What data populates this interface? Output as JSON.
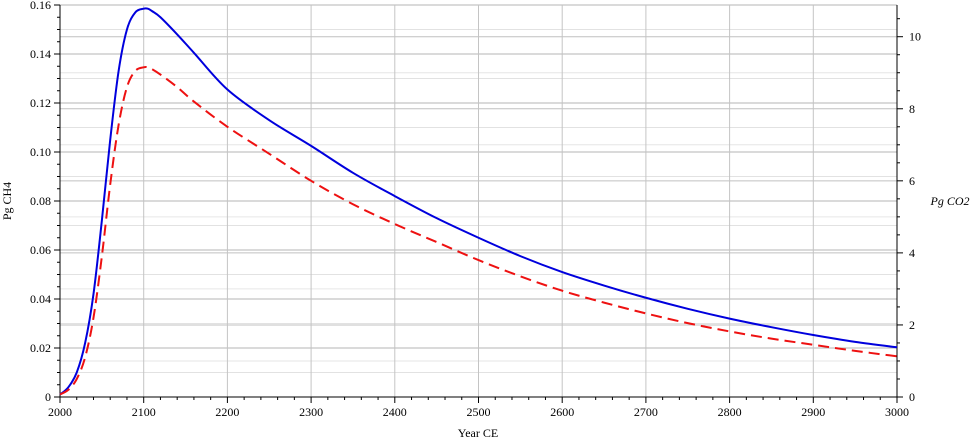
{
  "chart_data": {
    "type": "line",
    "xlabel": "Year CE",
    "ylabel_left": "Pg CH4",
    "ylabel_right": "Pg CO2",
    "xlim": [
      2000,
      3000
    ],
    "ylim_left": [
      0,
      0.16
    ],
    "ylim_right": [
      0,
      10.88
    ],
    "x_ticks": [
      "2000",
      "2100",
      "2200",
      "2300",
      "2400",
      "2500",
      "2600",
      "2700",
      "2800",
      "2900",
      "3000"
    ],
    "y_left_ticks": [
      "0",
      "0.02",
      "0.04",
      "0.06",
      "0.08",
      "0.10",
      "0.12",
      "0.14",
      "0.16"
    ],
    "y_right_ticks": [
      "0",
      "2",
      "4",
      "6",
      "8",
      "10"
    ],
    "grid": true,
    "legend": "none",
    "series": [
      {
        "color": "#0000dd",
        "style": "solid",
        "axis": "left",
        "x": [
          2000,
          2010,
          2020,
          2030,
          2040,
          2050,
          2060,
          2070,
          2080,
          2090,
          2100,
          2105,
          2110,
          2120,
          2140,
          2160,
          2200,
          2250,
          2300,
          2350,
          2400,
          2450,
          2500,
          2550,
          2600,
          2650,
          2700,
          2750,
          2800,
          2850,
          2900,
          2950,
          3000
        ],
        "y": [
          0.001,
          0.004,
          0.01,
          0.022,
          0.042,
          0.072,
          0.105,
          0.133,
          0.15,
          0.157,
          0.1585,
          0.1585,
          0.1575,
          0.155,
          0.148,
          0.1405,
          0.1255,
          0.113,
          0.1025,
          0.0915,
          0.082,
          0.073,
          0.065,
          0.0575,
          0.051,
          0.0455,
          0.0405,
          0.036,
          0.032,
          0.0285,
          0.0253,
          0.0225,
          0.0203
        ]
      },
      {
        "color": "#ee1111",
        "style": "dashed",
        "axis": "right",
        "x": [
          2000,
          2010,
          2020,
          2030,
          2040,
          2050,
          2060,
          2070,
          2080,
          2090,
          2100,
          2105,
          2110,
          2120,
          2140,
          2160,
          2200,
          2250,
          2300,
          2350,
          2400,
          2450,
          2500,
          2550,
          2600,
          2650,
          2700,
          2750,
          2800,
          2850,
          2900,
          2950,
          3000
        ],
        "y": [
          0.07,
          0.2,
          0.5,
          1.1,
          2.2,
          3.9,
          5.9,
          7.55,
          8.6,
          9.05,
          9.15,
          9.15,
          9.1,
          8.95,
          8.6,
          8.2,
          7.5,
          6.75,
          6.0,
          5.35,
          4.8,
          4.3,
          3.8,
          3.35,
          2.95,
          2.62,
          2.32,
          2.05,
          1.82,
          1.62,
          1.45,
          1.28,
          1.13
        ]
      }
    ]
  }
}
